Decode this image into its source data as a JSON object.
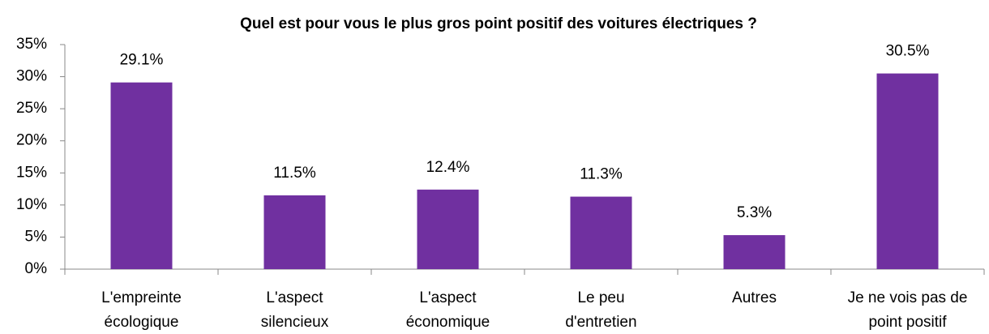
{
  "chart_data": {
    "type": "bar",
    "title": "Quel est pour vous le plus gros point positif des voitures électriques ?",
    "categories": [
      [
        "L'empreinte",
        "écologique"
      ],
      [
        "L'aspect",
        "silencieux"
      ],
      [
        "L'aspect",
        "économique"
      ],
      [
        "Le peu",
        "d'entretien"
      ],
      [
        "Autres"
      ],
      [
        "Je ne vois pas de",
        "point positif"
      ]
    ],
    "values": [
      29.1,
      11.5,
      12.4,
      11.3,
      5.3,
      30.5
    ],
    "value_labels": [
      "29.1%",
      "11.5%",
      "12.4%",
      "11.3%",
      "5.3%",
      "30.5%"
    ],
    "color": "#7030a0",
    "ylim": [
      0,
      35
    ],
    "yticks": [
      {
        "value": 0,
        "label": "0%"
      },
      {
        "value": 5,
        "label": "5%"
      },
      {
        "value": 10,
        "label": "10%"
      },
      {
        "value": 15,
        "label": "15%"
      },
      {
        "value": 20,
        "label": "20%"
      },
      {
        "value": 25,
        "label": "25%"
      },
      {
        "value": 30,
        "label": "30%"
      },
      {
        "value": 35,
        "label": "35%"
      }
    ],
    "grid": false
  }
}
